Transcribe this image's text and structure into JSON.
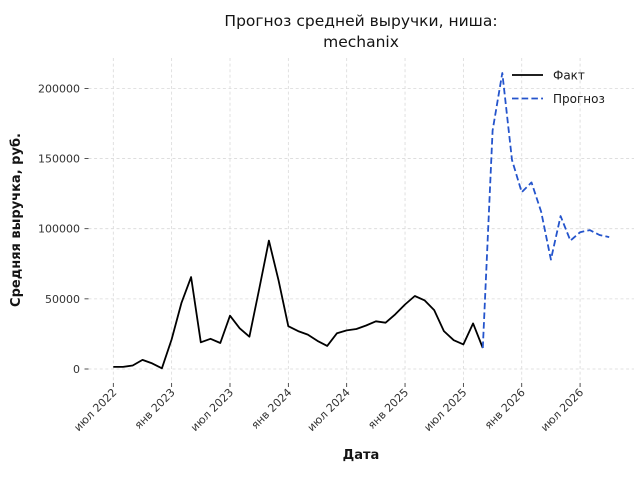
{
  "chart_data": {
    "type": "line",
    "title": "Прогноз средней выручки, ниша: mechanix",
    "title_lines": [
      "Прогноз средней выручки, ниша:",
      "mechanix"
    ],
    "xlabel": "Дата",
    "ylabel": "Средняя выручка, руб.",
    "grid": true,
    "grid_color": "#d9d9d9",
    "legend_position": "upper right",
    "ylim": [
      -10000,
      222000
    ],
    "x_range": [
      "2022-07",
      "2026-10"
    ],
    "y_ticks": [
      {
        "label": "0",
        "value": 0
      },
      {
        "label": "50000",
        "value": 50000
      },
      {
        "label": "100000",
        "value": 100000
      },
      {
        "label": "150000",
        "value": 150000
      },
      {
        "label": "200000",
        "value": 200000
      }
    ],
    "x_ticks": [
      {
        "label": "июл 2022",
        "month": "2022-07"
      },
      {
        "label": "янв 2023",
        "month": "2023-01"
      },
      {
        "label": "июл 2023",
        "month": "2023-07"
      },
      {
        "label": "янв 2024",
        "month": "2024-01"
      },
      {
        "label": "июл 2024",
        "month": "2024-07"
      },
      {
        "label": "янв 2025",
        "month": "2025-01"
      },
      {
        "label": "июл 2025",
        "month": "2025-07"
      },
      {
        "label": "янв 2026",
        "month": "2026-01"
      },
      {
        "label": "июл 2026",
        "month": "2026-07"
      }
    ],
    "series": [
      {
        "name": "Факт",
        "color": "#000000",
        "style": "solid",
        "x": [
          "2022-07",
          "2022-08",
          "2022-09",
          "2022-10",
          "2022-11",
          "2022-12",
          "2023-01",
          "2023-02",
          "2023-03",
          "2023-04",
          "2023-05",
          "2023-06",
          "2023-07",
          "2023-08",
          "2023-09",
          "2023-10",
          "2023-11",
          "2023-12",
          "2024-01",
          "2024-02",
          "2024-03",
          "2024-04",
          "2024-05",
          "2024-06",
          "2024-07",
          "2024-08",
          "2024-09",
          "2024-10",
          "2024-11",
          "2024-12",
          "2025-01",
          "2025-02",
          "2025-03",
          "2025-04",
          "2025-05",
          "2025-06",
          "2025-07",
          "2025-08",
          "2025-09"
        ],
        "values": [
          1500,
          1500,
          2500,
          6500,
          4000,
          500,
          21000,
          47000,
          65500,
          19000,
          21500,
          18500,
          38000,
          29000,
          23000,
          57000,
          91500,
          63000,
          30500,
          27000,
          24500,
          20000,
          16500,
          25500,
          27500,
          28500,
          31000,
          34000,
          33000,
          39000,
          46000,
          52000,
          49000,
          42000,
          27000,
          20500,
          17500,
          32500,
          15000
        ]
      },
      {
        "name": "Прогноз",
        "color": "#2454cc",
        "style": "dashed",
        "x": [
          "2025-09",
          "2025-10",
          "2025-11",
          "2025-12",
          "2026-01",
          "2026-02",
          "2026-03",
          "2026-04",
          "2026-05",
          "2026-06",
          "2026-07",
          "2026-08",
          "2026-09",
          "2026-10"
        ],
        "values": [
          15000,
          170000,
          211000,
          149000,
          126000,
          133000,
          112000,
          78000,
          109000,
          91500,
          97500,
          99000,
          95500,
          94000
        ]
      }
    ]
  }
}
